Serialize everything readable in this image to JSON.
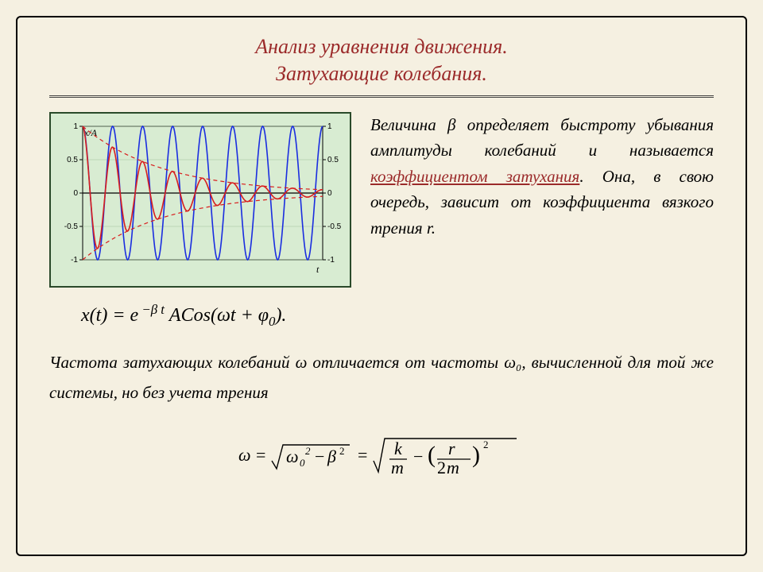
{
  "title": {
    "line1": "Анализ уравнения движения.",
    "line2": "Затухающие колебания."
  },
  "paragraph1": {
    "pre": "Величина ",
    "beta": "β",
    "mid": " определяет быстроту убывания амплитуды колебаний и называется ",
    "term": "коэффициентом затухания",
    "post1": ". Она, в свою очередь, зависит от коэффициента вязкого трения ",
    "r": "r.",
    "post2": ""
  },
  "equation1": "x(t) = e⁻ᵝᵗ ACos(ωt + φ₀).",
  "paragraph2": {
    "pre": "Частота затухающих колебаний ",
    "omega": "ω",
    "mid": " отличается от частоты ",
    "omega0": "ω₀",
    "post": ", вычисленной для той же системы, но без учета трения"
  },
  "equation2_tex": "ω = √(ω₀² − β²) = √( k/m − (r/2m)² )",
  "chart": {
    "type": "line",
    "background_color": "#d8ecd2",
    "frame_color": "#2a4a2a",
    "grid_color": "#9fbf99",
    "axis_color": "#000000",
    "y_label": "x/A",
    "x_label": "t",
    "xlim": [
      0,
      50
    ],
    "ylim": [
      -1,
      1
    ],
    "yticks": [
      -1,
      -0.5,
      0,
      0.5,
      1
    ],
    "yticklabels": [
      "-1",
      "-0.5",
      "0",
      "0.5",
      "1"
    ],
    "series": [
      {
        "name": "undamped",
        "color": "#1a2de0",
        "linewidth": 1.6,
        "damping": 0.0,
        "periods": 8,
        "style": "solid"
      },
      {
        "name": "damped",
        "color": "#d81e1e",
        "linewidth": 1.6,
        "damping": 0.06,
        "periods": 8,
        "style": "solid"
      },
      {
        "name": "envelope_upper",
        "color": "#d81e1e",
        "linewidth": 1.2,
        "damping": 0.06,
        "style": "dashed",
        "kind": "envelope",
        "sign": 1
      },
      {
        "name": "envelope_lower",
        "color": "#d81e1e",
        "linewidth": 1.2,
        "damping": 0.06,
        "style": "dashed",
        "kind": "envelope",
        "sign": -1
      }
    ]
  },
  "colors": {
    "page_bg": "#f5f0e1",
    "title_color": "#9b2a2a",
    "text_color": "#000000"
  },
  "fonts": {
    "title_size_pt": 20,
    "body_size_pt": 16,
    "equation_size_pt": 18
  }
}
